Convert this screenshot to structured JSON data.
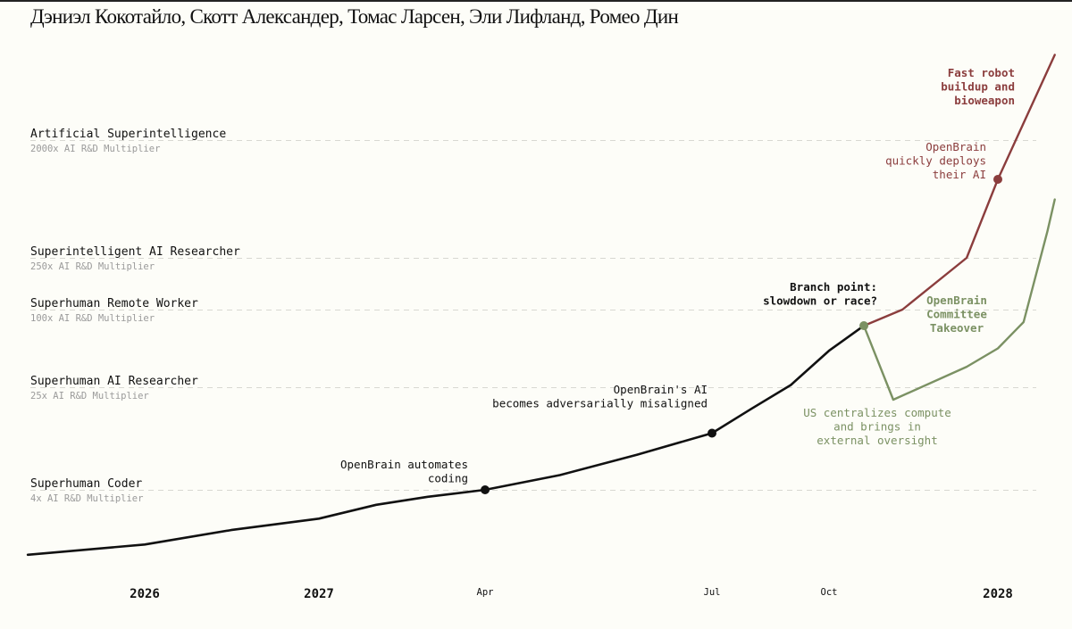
{
  "authors": "Дэниэл Кокотайло, Скотт Александер, Томас Ларсен, Эли Лифланд, Ромео Дин",
  "colors": {
    "main": "#111111",
    "race": "#8b3d3d",
    "slowdown": "#7b9163",
    "milestone_line": "#d8d8d2",
    "background": "#fdfdf8"
  },
  "chart_data": {
    "type": "line",
    "x_axis": {
      "ticks": [
        {
          "label": "2026",
          "date": "2026-01",
          "style": "year"
        },
        {
          "label": "2027",
          "date": "2027-01",
          "style": "year"
        },
        {
          "label": "Apr",
          "date": "2027-04",
          "style": "month"
        },
        {
          "label": "Jul",
          "date": "2027-07",
          "style": "month"
        },
        {
          "label": "Oct",
          "date": "2027-10",
          "style": "month"
        },
        {
          "label": "2028",
          "date": "2028-01",
          "style": "year"
        }
      ]
    },
    "y_axis": {
      "unit": "AI R&D Multiplier",
      "scale": "log",
      "milestones": [
        {
          "label": "Superhuman Coder",
          "sub": "4x AI R&D Multiplier",
          "value": 4
        },
        {
          "label": "Superhuman AI Researcher",
          "sub": "25x AI R&D Multiplier",
          "value": 25
        },
        {
          "label": "Superhuman Remote Worker",
          "sub": "100x AI R&D Multiplier",
          "value": 100
        },
        {
          "label": "Superintelligent AI Researcher",
          "sub": "250x AI R&D Multiplier",
          "value": 250
        },
        {
          "label": "Artificial Superintelligence",
          "sub": "2000x AI R&D Multiplier",
          "value": 2000
        }
      ]
    },
    "series": [
      {
        "key": "main",
        "points": [
          {
            "date": "2025-05",
            "value": 1.15
          },
          {
            "date": "2026-01",
            "value": 1.4
          },
          {
            "date": "2026-07",
            "value": 1.85
          },
          {
            "date": "2027-01",
            "value": 2.3
          },
          {
            "date": "2027-02",
            "value": 3.0
          },
          {
            "date": "2027-03",
            "value": 3.5
          },
          {
            "date": "2027-04",
            "value": 4.0
          },
          {
            "date": "2027-05",
            "value": 5.2
          },
          {
            "date": "2027-06",
            "value": 7.5
          },
          {
            "date": "2027-07",
            "value": 11
          },
          {
            "date": "2027-08",
            "value": 17
          },
          {
            "date": "2027-09",
            "value": 26
          },
          {
            "date": "2027-10",
            "value": 48
          },
          {
            "date": "2027-10-20",
            "value": 75
          }
        ]
      },
      {
        "key": "race",
        "points": [
          {
            "date": "2027-10-20",
            "value": 75
          },
          {
            "date": "2027-11-10",
            "value": 100
          },
          {
            "date": "2027-12-15",
            "value": 250
          },
          {
            "date": "2028-01",
            "value": 1000
          },
          {
            "date": "2028-02",
            "value": 9000
          }
        ]
      },
      {
        "key": "slowdown",
        "points": [
          {
            "date": "2027-10-20",
            "value": 75
          },
          {
            "date": "2027-11-05",
            "value": 20
          },
          {
            "date": "2027-12-15",
            "value": 36
          },
          {
            "date": "2028-01",
            "value": 50
          },
          {
            "date": "2028-01-15",
            "value": 80
          },
          {
            "date": "2028-01-28",
            "value": 400
          },
          {
            "date": "2028-02",
            "value": 700
          }
        ]
      }
    ],
    "annotations": [
      {
        "key": "coding",
        "lines": [
          "OpenBrain automates",
          "coding"
        ],
        "date": "2027-04",
        "value": 4.0,
        "color": "main",
        "bold": false,
        "dot": true
      },
      {
        "key": "misaligned",
        "lines": [
          "OpenBrain's AI",
          "becomes adversarially misaligned"
        ],
        "date": "2027-07",
        "value": 11,
        "color": "main",
        "bold": false,
        "dot": true
      },
      {
        "key": "branch",
        "lines": [
          "Branch point:",
          "slowdown or race?"
        ],
        "date": "2027-10-20",
        "value": 75,
        "color": "main",
        "bold": true,
        "dot": true
      },
      {
        "key": "deploys",
        "lines": [
          "OpenBrain",
          "quickly deploys",
          "their AI"
        ],
        "date": "2028-01",
        "value": 1000,
        "color": "race",
        "bold": false,
        "dot": true
      },
      {
        "key": "robot",
        "lines": [
          "Fast robot",
          "buildup and",
          "bioweapon"
        ],
        "color": "race",
        "bold": true,
        "dot": false
      },
      {
        "key": "centralizes",
        "lines": [
          "US centralizes compute",
          "and brings in",
          "external oversight"
        ],
        "color": "slowdown",
        "bold": false,
        "dot": false
      },
      {
        "key": "committee",
        "lines": [
          "OpenBrain",
          "Committee",
          "Takeover"
        ],
        "color": "slowdown",
        "bold": true,
        "dot": false
      }
    ]
  }
}
